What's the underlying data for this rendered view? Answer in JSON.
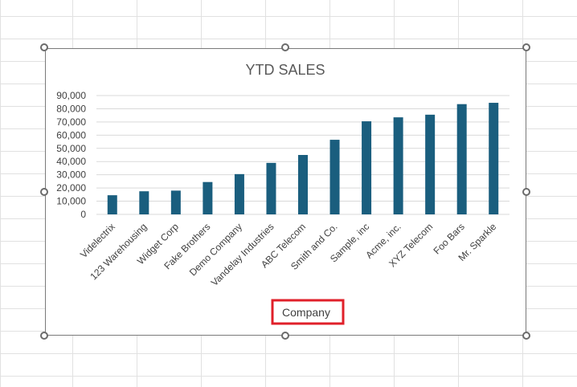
{
  "colors": {
    "bar": "#1a5e7e",
    "gridline": "#d9d9d9",
    "selection_highlight": "#e0202a",
    "sheet_grid": "#e1e1e1"
  },
  "chart_data": {
    "type": "bar",
    "title": "YTD SALES",
    "xlabel": "Company",
    "ylabel": "",
    "categories": [
      "Videlectrix",
      "123 Warehousing",
      "Widget Corp",
      "Fake Brothers",
      "Demo Company",
      "Vandelay Industries",
      "ABC Telecom",
      "Smith and Co.",
      "Sample, inc",
      "Acme, inc.",
      "XYZ Telecom",
      "Foo Bars",
      "Mr. Sparkle"
    ],
    "values": [
      14500,
      17500,
      18000,
      24500,
      30500,
      39000,
      45000,
      56500,
      70500,
      73500,
      75500,
      83500,
      84500
    ],
    "ylim": [
      0,
      90000
    ],
    "yticks": [
      "0",
      "10,000",
      "20,000",
      "30,000",
      "40,000",
      "50,000",
      "60,000",
      "70,000",
      "80,000",
      "90,000"
    ],
    "grid": true,
    "legend": "none"
  }
}
